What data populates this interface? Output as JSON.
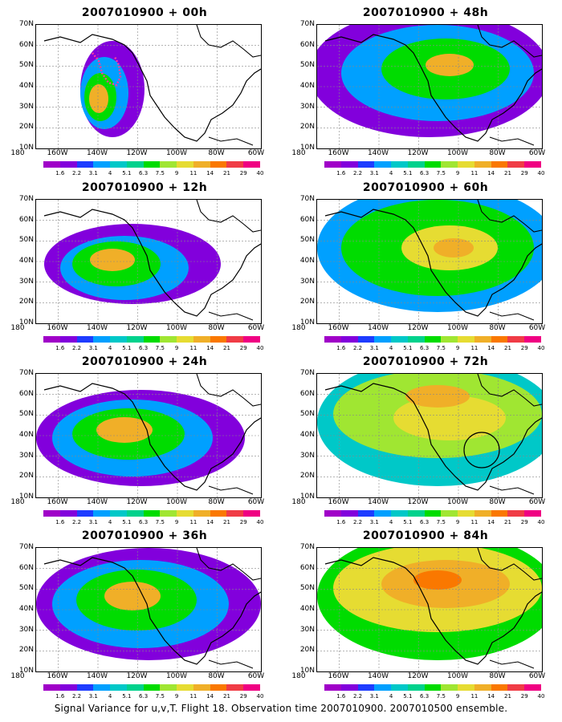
{
  "panels": [
    {
      "title": "2007010900 + 00h"
    },
    {
      "title": "2007010900 + 12h"
    },
    {
      "title": "2007010900 + 24h"
    },
    {
      "title": "2007010900 + 36h"
    },
    {
      "title": "2007010900 + 48h"
    },
    {
      "title": "2007010900 + 60h"
    },
    {
      "title": "2007010900 + 72h"
    },
    {
      "title": "2007010900 + 84h"
    }
  ],
  "axes": {
    "lat_labels": [
      "70N",
      "60N",
      "50N",
      "40N",
      "30N",
      "20N",
      "10N"
    ],
    "lon_labels": [
      "180",
      "160W",
      "140W",
      "120W",
      "100W",
      "80W",
      "60W"
    ]
  },
  "colorbar": {
    "labels": [
      "1.6",
      "2.2",
      "3.1",
      "4",
      "5.1",
      "6.3",
      "7.5",
      "9",
      "11",
      "14",
      "21",
      "29",
      "40"
    ],
    "colors": [
      "#a000c8",
      "#8200dc",
      "#1e3cff",
      "#00a0ff",
      "#00c8c8",
      "#00d28c",
      "#00dc00",
      "#a0e632",
      "#e6dc32",
      "#f0af28",
      "#fa7800",
      "#f03c46",
      "#f00082"
    ]
  },
  "caption": "Signal Variance for u,v,T. Flight 18. Observation time 2007010900. 2007010500 ensemble."
}
